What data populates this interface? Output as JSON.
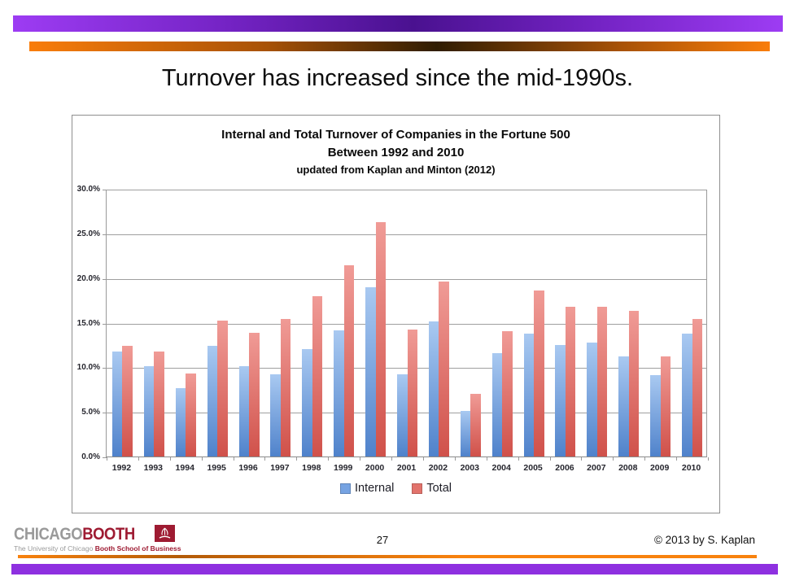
{
  "slide": {
    "title": "Turnover has increased since the mid-1990s."
  },
  "chart_data": {
    "type": "bar",
    "title": "Internal and Total Turnover of Companies in the Fortune 500 Between 1992 and 2010, updated from Kaplan and Minton (2012)",
    "title_lines": [
      "Internal and Total Turnover of Companies in the Fortune 500",
      "Between 1992 and 2010",
      "updated from Kaplan and Minton (2012)"
    ],
    "categories": [
      "1992",
      "1993",
      "1994",
      "1995",
      "1996",
      "1997",
      "1998",
      "1999",
      "2000",
      "2001",
      "2002",
      "2003",
      "2004",
      "2005",
      "2006",
      "2007",
      "2008",
      "2009",
      "2010"
    ],
    "series": [
      {
        "name": "Internal",
        "values": [
          11.8,
          10.1,
          7.7,
          12.4,
          10.1,
          9.2,
          12.0,
          14.1,
          19.0,
          9.2,
          15.1,
          5.1,
          11.6,
          13.8,
          12.5,
          12.8,
          11.2,
          9.1,
          13.8
        ],
        "color_top": "#A9C9F1",
        "color_bottom": "#4F82CB",
        "legend_color": "#76A3E2"
      },
      {
        "name": "Total",
        "values": [
          12.4,
          11.8,
          9.3,
          15.2,
          13.9,
          15.4,
          18.0,
          21.4,
          26.3,
          14.2,
          19.6,
          7.0,
          14.0,
          18.6,
          16.8,
          16.8,
          16.3,
          11.2,
          15.4
        ],
        "color_top": "#F09B96",
        "color_bottom": "#D0514A",
        "legend_color": "#E2736C"
      }
    ],
    "ylim": [
      0,
      30
    ],
    "ytick_labels": [
      "0.0%",
      "5.0%",
      "10.0%",
      "15.0%",
      "20.0%",
      "25.0%",
      "30.0%"
    ],
    "legend_position": "bottom",
    "grid": true
  },
  "footer": {
    "logo_primary_gray": "CHICAGO",
    "logo_primary_maroon": "BOOTH",
    "logo_sub_gray": "The University of Chicago ",
    "logo_sub_maroon": "Booth School of Business",
    "page_number": "27",
    "copyright": "© 2013 by S. Kaplan"
  },
  "colors": {
    "grid": "#9f9f9f",
    "axis_text": "#26262e",
    "booth_maroon": "#9e1b32",
    "booth_gray": "#9a9a9a",
    "top_purple_light": "#9d3cf3",
    "top_purple_dark": "#4a1190",
    "top_orange_light": "#f97d0a",
    "top_orange_dark": "#301d03",
    "bottom_purple": "#8e30e0"
  }
}
